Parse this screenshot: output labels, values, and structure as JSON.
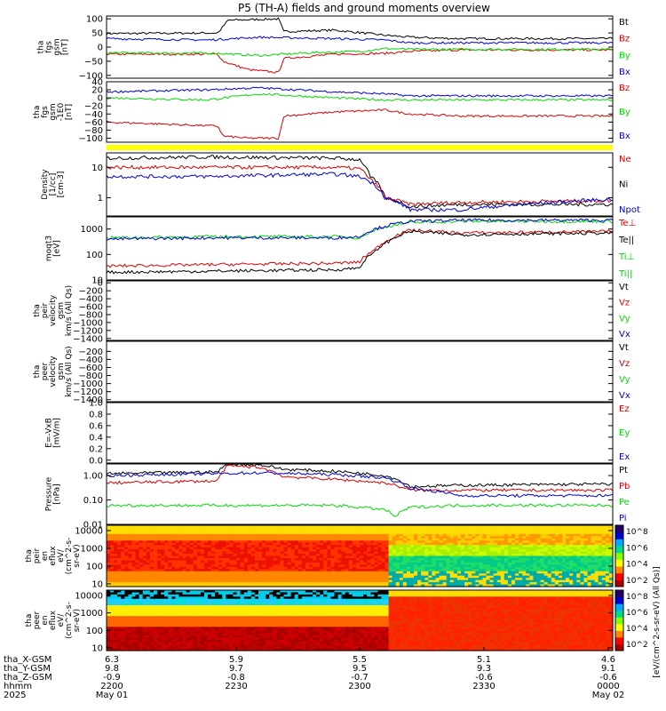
{
  "title": "P5 (TH-A) fields and ground moments overview",
  "colors": {
    "black": "#000000",
    "red": "#e00000",
    "green": "#00dd00",
    "blue": "#0000dd",
    "flag": "#ffff00"
  },
  "chart_data": [
    {
      "id": "p1",
      "type": "line",
      "ylabel": [
        "tha",
        "fgs",
        "gsm",
        "[nT]"
      ],
      "ylim": [
        -110,
        110
      ],
      "ticks": [
        100,
        50,
        0,
        -50,
        -100
      ],
      "tick_labels": [
        "100",
        "50",
        "0",
        "−50",
        "−100"
      ],
      "legend": [
        {
          "name": "Bt",
          "color": "black"
        },
        {
          "name": "Bz",
          "color": "red"
        },
        {
          "name": "By",
          "color": "green"
        },
        {
          "name": "Bx",
          "color": "blue"
        }
      ],
      "series": [
        {
          "name": "Bt",
          "color": "black",
          "x": [
            0,
            0.22,
            0.24,
            0.34,
            0.35,
            0.45,
            0.55,
            0.6,
            0.65,
            0.7,
            1
          ],
          "y": [
            48,
            50,
            95,
            100,
            55,
            60,
            42,
            35,
            32,
            30,
            30
          ]
        },
        {
          "name": "Bz",
          "color": "red",
          "x": [
            0,
            0.22,
            0.23,
            0.28,
            0.34,
            0.35,
            0.45,
            0.55,
            0.6,
            0.7,
            1
          ],
          "y": [
            -25,
            -25,
            -50,
            -80,
            -90,
            -40,
            -25,
            -22,
            -15,
            -10,
            -10
          ]
        },
        {
          "name": "By",
          "color": "green",
          "x": [
            0,
            0.22,
            0.3,
            0.4,
            0.5,
            0.55,
            0.6,
            0.7,
            1
          ],
          "y": [
            -20,
            -22,
            -30,
            -20,
            -15,
            -5,
            -8,
            -8,
            -8
          ]
        },
        {
          "name": "Bx",
          "color": "blue",
          "x": [
            0,
            0.2,
            0.3,
            0.45,
            0.55,
            0.6,
            0.7,
            1
          ],
          "y": [
            30,
            25,
            35,
            30,
            25,
            15,
            15,
            15
          ]
        }
      ]
    },
    {
      "id": "p2",
      "type": "line",
      "ylabel": [
        "tha",
        "fgs",
        "gsm",
        "-1E0",
        "[nT]"
      ],
      "ylim": [
        -110,
        40
      ],
      "ticks": [
        40,
        20,
        0,
        -20,
        -40,
        -60,
        -80,
        -100
      ],
      "tick_labels": [
        "40",
        "20",
        "0",
        "−20",
        "−40",
        "−60",
        "−80",
        "−100"
      ],
      "legend": [
        {
          "name": "Bz",
          "color": "red"
        },
        {
          "name": "By",
          "color": "green"
        },
        {
          "name": "Bx",
          "color": "blue"
        }
      ],
      "series": [
        {
          "name": "Bz",
          "color": "red",
          "x": [
            0,
            0.22,
            0.23,
            0.28,
            0.34,
            0.35,
            0.45,
            0.55,
            0.6,
            0.7,
            1
          ],
          "y": [
            -60,
            -70,
            -95,
            -100,
            -100,
            -45,
            -35,
            -30,
            -40,
            -45,
            -45
          ]
        },
        {
          "name": "By",
          "color": "green",
          "x": [
            0,
            0.2,
            0.3,
            0.45,
            0.55,
            0.6,
            1
          ],
          "y": [
            0,
            -5,
            10,
            0,
            -5,
            -5,
            -5
          ]
        },
        {
          "name": "Bx",
          "color": "blue",
          "x": [
            0,
            0.2,
            0.3,
            0.45,
            0.55,
            0.6,
            1
          ],
          "y": [
            15,
            20,
            25,
            15,
            10,
            5,
            5
          ]
        }
      ]
    },
    {
      "id": "p3",
      "type": "line",
      "ylabel": [
        "Density",
        "[1/cc]",
        "[cm-3]"
      ],
      "ylog": true,
      "ylim": [
        0.25,
        30
      ],
      "ticks": [
        10,
        1
      ],
      "tick_labels": [
        "10",
        "1"
      ],
      "legend": [
        {
          "name": "Ne",
          "color": "red"
        },
        {
          "name": "Ni",
          "color": "black"
        },
        {
          "name": "Npot",
          "color": "blue"
        }
      ],
      "series": [
        {
          "name": "Ni",
          "color": "black",
          "x": [
            0,
            0.2,
            0.45,
            0.5,
            0.52,
            0.55,
            0.6,
            0.7,
            1
          ],
          "y": [
            20,
            22,
            20,
            18,
            5,
            1,
            0.5,
            0.6,
            0.6
          ]
        },
        {
          "name": "Ne",
          "color": "red",
          "x": [
            0,
            0.2,
            0.45,
            0.5,
            0.52,
            0.55,
            0.6,
            0.7,
            1
          ],
          "y": [
            10,
            10,
            10,
            9,
            4,
            1,
            0.6,
            0.7,
            0.8
          ]
        },
        {
          "name": "Npot",
          "color": "blue",
          "x": [
            0,
            0.2,
            0.45,
            0.5,
            0.55,
            0.6,
            0.7,
            1
          ],
          "y": [
            5,
            5,
            6,
            5,
            1,
            0.4,
            0.4,
            0.9
          ]
        }
      ]
    },
    {
      "id": "p4",
      "type": "line",
      "ylabel": [
        "moqt3",
        "[eV]"
      ],
      "ylog": true,
      "ylim": [
        10,
        3000
      ],
      "ticks": [
        1000,
        100,
        10
      ],
      "tick_labels": [
        "1000",
        "100",
        "10"
      ],
      "legend": [
        {
          "name": "Te⊥",
          "color": "red"
        },
        {
          "name": "Te||",
          "color": "black"
        },
        {
          "name": "Ti⊥",
          "color": "green"
        },
        {
          "name": "Ti||",
          "color": "green"
        }
      ],
      "series": [
        {
          "name": "Ti",
          "color": "green",
          "x": [
            0,
            0.2,
            0.45,
            0.5,
            0.55,
            0.6,
            0.7,
            1
          ],
          "y": [
            450,
            500,
            500,
            450,
            1200,
            1800,
            2000,
            2000
          ]
        },
        {
          "name": "Ti2",
          "color": "blue",
          "x": [
            0,
            0.2,
            0.45,
            0.5,
            0.55,
            0.6,
            0.7,
            1
          ],
          "y": [
            400,
            450,
            450,
            500,
            1300,
            2000,
            2200,
            2200
          ]
        },
        {
          "name": "Te",
          "color": "red",
          "x": [
            0,
            0.2,
            0.45,
            0.5,
            0.53,
            0.56,
            0.6,
            0.7,
            1
          ],
          "y": [
            35,
            40,
            45,
            50,
            150,
            400,
            900,
            700,
            800
          ]
        },
        {
          "name": "Te2",
          "color": "black",
          "x": [
            0,
            0.2,
            0.45,
            0.5,
            0.53,
            0.56,
            0.6,
            0.7,
            1
          ],
          "y": [
            20,
            22,
            25,
            30,
            120,
            350,
            800,
            600,
            700
          ]
        }
      ]
    },
    {
      "id": "p5",
      "type": "line",
      "ylabel": [
        "tha",
        "peir",
        "velocity",
        "gsm",
        "km/s (All Qs)"
      ],
      "ylim": [
        -1450,
        50
      ],
      "ticks": [
        0,
        -200,
        -400,
        -600,
        -800,
        -1000,
        -1200,
        -1400
      ],
      "tick_labels": [
        "0",
        "−200",
        "−400",
        "−600",
        "−800",
        "−1000",
        "−1200",
        "−1400"
      ],
      "legend": [
        {
          "name": "Vt",
          "color": "black"
        },
        {
          "name": "Vz",
          "color": "red"
        },
        {
          "name": "Vy",
          "color": "green"
        },
        {
          "name": "Vx",
          "color": "blue"
        }
      ],
      "series": []
    },
    {
      "id": "p6",
      "type": "line",
      "ylabel": [
        "tha",
        "peer",
        "velocity",
        "gsm",
        "km/s (All Qs)"
      ],
      "ylim": [
        -1450,
        50
      ],
      "ticks": [
        -200,
        -400,
        -600,
        -800,
        -1000,
        -1200,
        -1400
      ],
      "tick_labels": [
        "−200",
        "−400",
        "−600",
        "−800",
        "−1000",
        "−1200",
        "−1400"
      ],
      "legend": [
        {
          "name": "Vt",
          "color": "black"
        },
        {
          "name": "Vz",
          "color": "red"
        },
        {
          "name": "Vy",
          "color": "green"
        },
        {
          "name": "Vx",
          "color": "blue"
        }
      ],
      "series": []
    },
    {
      "id": "p7",
      "type": "line",
      "ylabel": [
        "E=-VxB",
        "[mV/m]"
      ],
      "ylim": [
        -0.05,
        1.0
      ],
      "ticks": [
        1.0,
        0.8,
        0.6,
        0.4,
        0.2,
        0.0
      ],
      "tick_labels": [
        "1.0",
        "0.8",
        "0.6",
        "0.4",
        "0.2",
        "0.0"
      ],
      "legend": [
        {
          "name": "Ez",
          "color": "red"
        },
        {
          "name": "Ey",
          "color": "green"
        },
        {
          "name": "Ex",
          "color": "blue"
        }
      ],
      "series": []
    },
    {
      "id": "p8",
      "type": "line",
      "ylabel": [
        "Pressure",
        "[nPa]"
      ],
      "ylog": true,
      "ylim": [
        0.01,
        3
      ],
      "ticks": [
        1.0,
        0.1,
        0.01
      ],
      "tick_labels": [
        "1.00",
        "0.10",
        "0.01"
      ],
      "legend": [
        {
          "name": "Pt",
          "color": "black"
        },
        {
          "name": "Pb",
          "color": "red"
        },
        {
          "name": "Pe",
          "color": "green"
        },
        {
          "name": "Pi",
          "color": "blue"
        }
      ],
      "series": [
        {
          "name": "Pt",
          "color": "black",
          "x": [
            0,
            0.22,
            0.24,
            0.3,
            0.35,
            0.45,
            0.55,
            0.6,
            0.7,
            1
          ],
          "y": [
            1.2,
            1.4,
            3,
            2.8,
            1.8,
            1.5,
            1.0,
            0.35,
            0.4,
            0.45
          ]
        },
        {
          "name": "Pb",
          "color": "red",
          "x": [
            0,
            0.22,
            0.24,
            0.3,
            0.35,
            0.45,
            0.55,
            0.6,
            0.7,
            1
          ],
          "y": [
            0.5,
            0.6,
            2.5,
            2.2,
            0.9,
            0.7,
            0.5,
            0.25,
            0.25,
            0.25
          ]
        },
        {
          "name": "Pi",
          "color": "blue",
          "x": [
            0,
            0.22,
            0.3,
            0.45,
            0.55,
            0.6,
            0.7,
            1
          ],
          "y": [
            1.0,
            1.2,
            1.3,
            1.1,
            0.8,
            0.3,
            0.15,
            0.15
          ]
        },
        {
          "name": "Pe",
          "color": "green",
          "x": [
            0,
            0.2,
            0.45,
            0.55,
            0.57,
            0.6,
            0.7,
            1
          ],
          "y": [
            0.06,
            0.06,
            0.06,
            0.04,
            0.02,
            0.05,
            0.06,
            0.06
          ]
        }
      ]
    },
    {
      "id": "p9",
      "type": "heatmap",
      "ylabel": [
        "tha",
        "peir",
        "en",
        "eflux",
        "eV/",
        "(cm^2-s-",
        "sr-eV)"
      ],
      "ylog": true,
      "ylim": [
        7,
        20000
      ],
      "ticks": [
        10000,
        1000,
        100,
        10
      ],
      "tick_labels": [
        "10000",
        "1000",
        "100",
        "10"
      ]
    },
    {
      "id": "p10",
      "type": "heatmap",
      "ylabel": [
        "tha",
        "peer",
        "en",
        "eflux",
        "eV/",
        "(cm^2-s-",
        "sr-eV)"
      ],
      "ylog": true,
      "ylim": [
        7,
        20000
      ],
      "ticks": [
        10000,
        1000,
        100,
        10
      ],
      "tick_labels": [
        "10000",
        "1000",
        "100",
        "10"
      ]
    }
  ],
  "colorbar": {
    "label": "[eV/(cm^2-s-sr-eV) (All Qs)]",
    "ticks": [
      "10^8",
      "10^6",
      "10^4",
      "10^2"
    ]
  },
  "xaxis": {
    "rows": [
      {
        "label": "tha_X-GSM",
        "values": [
          "6.3",
          "5.9",
          "5.5",
          "5.1",
          "4.6"
        ]
      },
      {
        "label": "tha_Y-GSM",
        "values": [
          "9.8",
          "9.7",
          "9.5",
          "9.3",
          "9.1"
        ]
      },
      {
        "label": "tha_Z-GSM",
        "values": [
          "-0.9",
          "-0.8",
          "-0.7",
          "-0.6",
          "-0.6"
        ]
      },
      {
        "label": "hhmm",
        "values": [
          "2200",
          "2230",
          "2300",
          "2330",
          "0000"
        ]
      },
      {
        "label": "2025",
        "values": [
          "May 01",
          "",
          "",
          "",
          "May 02"
        ]
      }
    ]
  }
}
